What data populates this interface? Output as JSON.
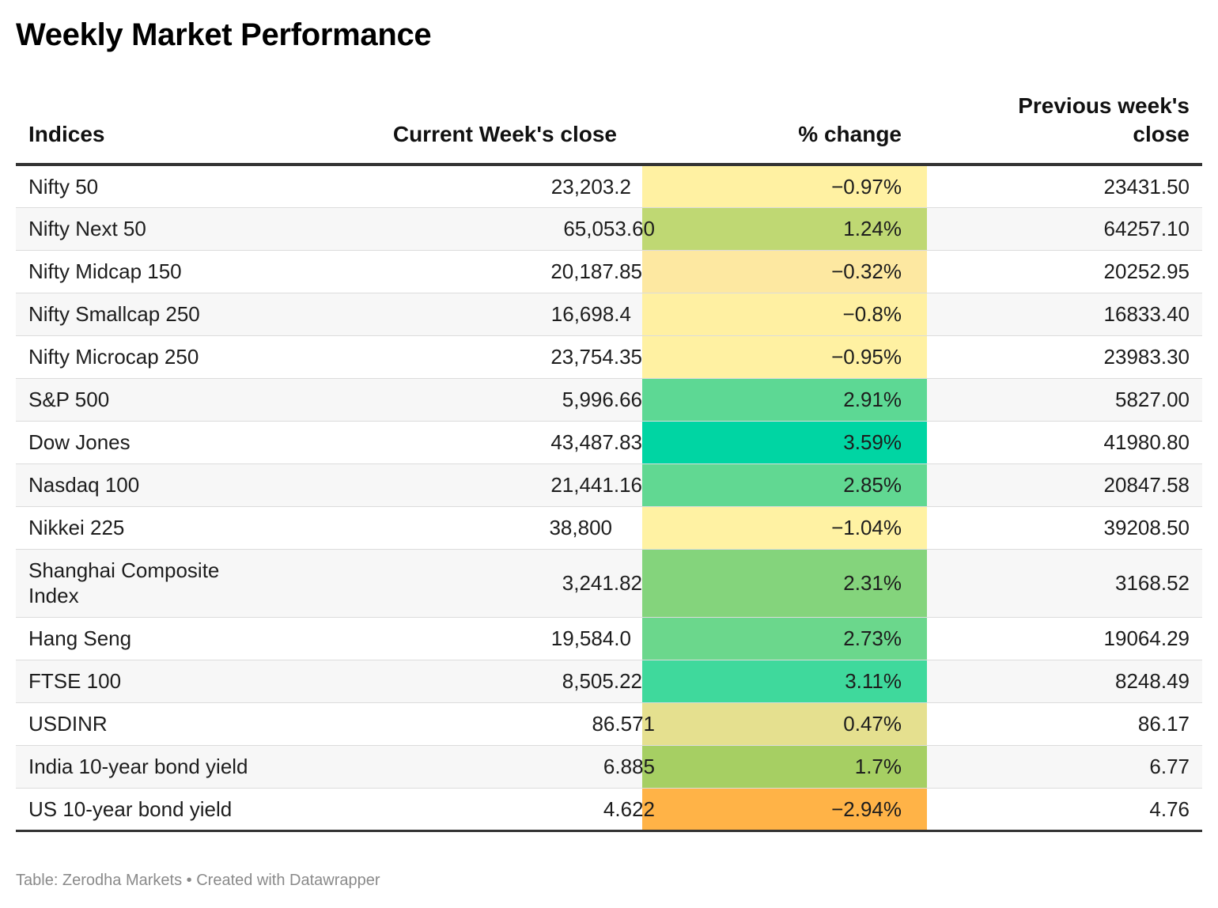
{
  "title": "Weekly Market Performance",
  "chart_data": {
    "type": "table",
    "title": "Weekly Market Performance",
    "columns": [
      "Indices",
      "Current Week's close",
      "% change",
      "Previous week's close"
    ],
    "rows": [
      {
        "name": "Nifty 50",
        "current": "23,203.2",
        "change": "−0.97%",
        "change_value": -0.97,
        "previous": "23431.50",
        "color": "#fff1a2"
      },
      {
        "name": "Nifty Next 50",
        "current": "65,053.60",
        "change": "1.24%",
        "change_value": 1.24,
        "previous": "64257.10",
        "color": "#bfd873"
      },
      {
        "name": "Nifty Midcap 150",
        "current": "20,187.85",
        "change": "−0.32%",
        "change_value": -0.32,
        "previous": "20252.95",
        "color": "#fde8a1"
      },
      {
        "name": "Nifty Smallcap 250",
        "current": "16,698.4",
        "change": "−0.8%",
        "change_value": -0.8,
        "previous": "16833.40",
        "color": "#fff0a2"
      },
      {
        "name": "Nifty Microcap 250",
        "current": "23,754.35",
        "change": "−0.95%",
        "change_value": -0.95,
        "previous": "23983.30",
        "color": "#fff1a2"
      },
      {
        "name": "S&P 500",
        "current": "5,996.66",
        "change": "2.91%",
        "change_value": 2.91,
        "previous": "5827.00",
        "color": "#5dd894"
      },
      {
        "name": "Dow Jones",
        "current": "43,487.83",
        "change": "3.59%",
        "change_value": 3.59,
        "previous": "41980.80",
        "color": "#00d5a3"
      },
      {
        "name": "Nasdaq 100",
        "current": "21,441.16",
        "change": "2.85%",
        "change_value": 2.85,
        "previous": "20847.58",
        "color": "#61d892"
      },
      {
        "name": "Nikkei 225",
        "current": "38,800",
        "change": "−1.04%",
        "change_value": -1.04,
        "previous": "39208.50",
        "color": "#fff2a3"
      },
      {
        "name": "Shanghai Composite Index",
        "current": "3,241.82",
        "change": "2.31%",
        "change_value": 2.31,
        "previous": "3168.52",
        "color": "#84d47c",
        "tall": true
      },
      {
        "name": "Hang Seng",
        "current": "19,584.0",
        "change": "2.73%",
        "change_value": 2.73,
        "previous": "19064.29",
        "color": "#6bd78c"
      },
      {
        "name": "FTSE 100",
        "current": "8,505.22",
        "change": "3.11%",
        "change_value": 3.11,
        "previous": "8248.49",
        "color": "#3fd99c"
      },
      {
        "name": "USDINR",
        "current": "86.571",
        "change": "0.47%",
        "change_value": 0.47,
        "previous": "86.17",
        "color": "#e5e08f"
      },
      {
        "name": "India 10-year bond yield",
        "current": "6.885",
        "change": "1.7%",
        "change_value": 1.7,
        "previous": "6.77",
        "color": "#a6cf63"
      },
      {
        "name": "US 10-year bond yield",
        "current": "4.622",
        "change": "−2.94%",
        "change_value": -2.94,
        "previous": "4.76",
        "color": "#ffb347"
      }
    ]
  },
  "footer": "Table: Zerodha Markets • Created with Datawrapper"
}
